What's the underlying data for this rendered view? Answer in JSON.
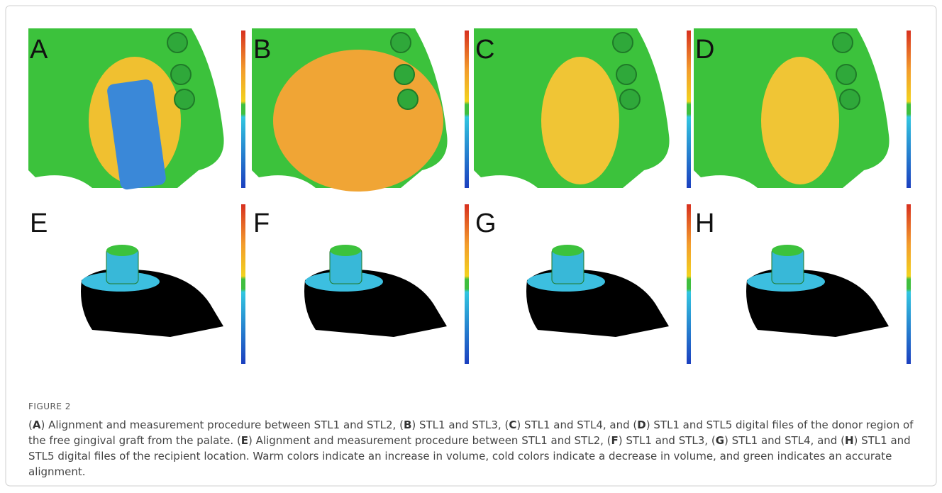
{
  "figure": {
    "panel_labels": [
      "A",
      "B",
      "C",
      "D",
      "E",
      "F",
      "G",
      "H"
    ],
    "figure_label": "FIGURE 2",
    "caption": [
      "(",
      "A",
      ") Alignment and measurement procedure between STL1 and STL2, (",
      "B",
      ") STL1 and STL3, (",
      "C",
      ") STL1 and STL4, and (",
      "D",
      ") STL1 and STL5 digital files of the donor region of the free gingival graft from the palate. (",
      "E",
      ") Alignment and measurement procedure between STL1 and STL2, (",
      "F",
      ") STL1 and STL3, (",
      "G",
      ") STL1 and STL4, and (",
      "H",
      ") STL1 and STL5 digital files of the recipient location. Warm colors indicate an increase in volume, cold colors indicate a decrease in volume, and green indicates an accurate alignment."
    ]
  }
}
